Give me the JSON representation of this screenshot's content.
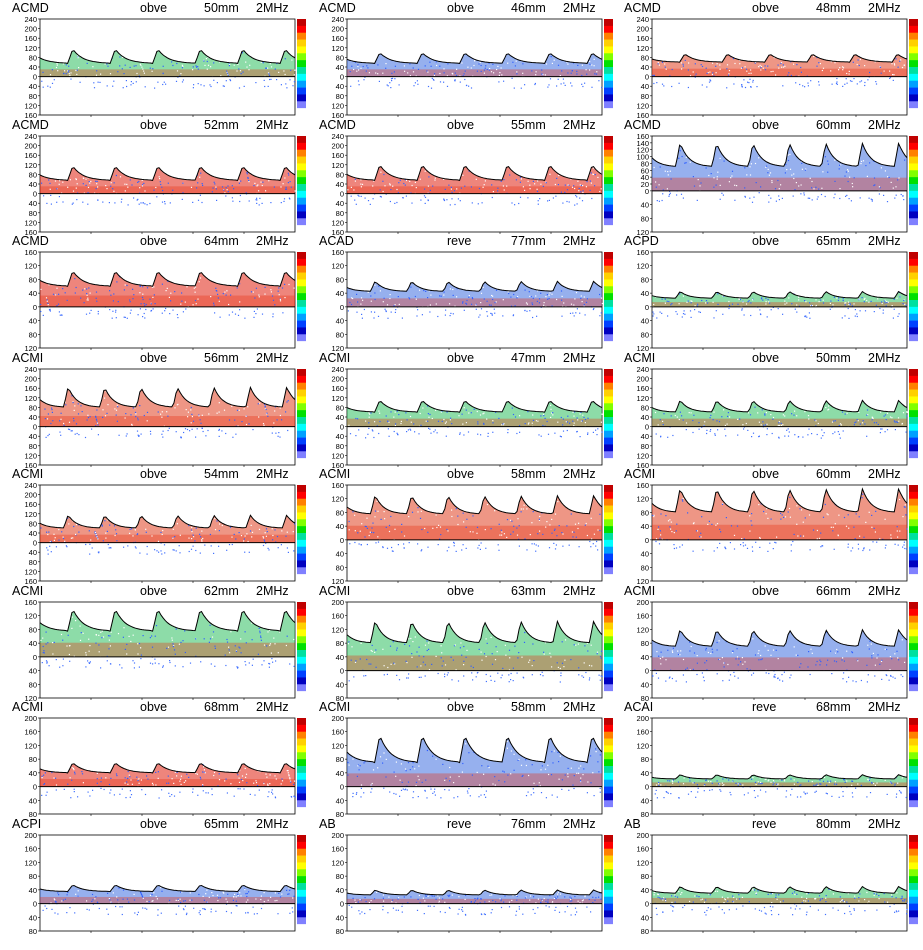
{
  "colorbar": [
    "#c00000",
    "#ff0000",
    "#ff8000",
    "#ffd000",
    "#ffff00",
    "#80ff00",
    "#00e000",
    "#00e0a0",
    "#00ffff",
    "#00a0ff",
    "#0040ff",
    "#0000c0",
    "#8080ff",
    "#ffffff"
  ],
  "chart_data": [
    {
      "type": "heatmap",
      "vessel": "ACMD",
      "direction": "obve",
      "depth": "50mm",
      "freq": "2MHz",
      "ticks_top": [
        "240",
        "200",
        "160",
        "120",
        "80",
        "40",
        "0"
      ],
      "ticks_bottom": [
        "40",
        "80",
        "120",
        "160"
      ],
      "cycles": 6,
      "peak": 115,
      "trough": 55,
      "band_color": "#30c060"
    },
    {
      "type": "heatmap",
      "vessel": "ACMD",
      "direction": "obve",
      "depth": "46mm",
      "freq": "2MHz",
      "ticks_top": [
        "240",
        "200",
        "160",
        "120",
        "80",
        "40",
        "0"
      ],
      "ticks_bottom": [
        "40",
        "80",
        "120",
        "160"
      ],
      "cycles": 6,
      "peak": 100,
      "trough": 55,
      "band_color": "#4070e0"
    },
    {
      "type": "heatmap",
      "vessel": "ACMD",
      "direction": "obve",
      "depth": "48mm",
      "freq": "2MHz",
      "ticks_top": [
        "240",
        "200",
        "160",
        "120",
        "80",
        "40",
        "0"
      ],
      "ticks_bottom": [
        "40",
        "80",
        "120",
        "160"
      ],
      "cycles": 6,
      "peak": 95,
      "trough": 60,
      "band_color": "#e04020"
    },
    {
      "type": "heatmap",
      "vessel": "ACMD",
      "direction": "obve",
      "depth": "52mm",
      "freq": "2MHz",
      "ticks_top": [
        "240",
        "200",
        "160",
        "120",
        "80",
        "40",
        "0"
      ],
      "ticks_bottom": [
        "40",
        "80",
        "120",
        "160"
      ],
      "cycles": 6,
      "peak": 115,
      "trough": 55,
      "band_color": "#e02010"
    },
    {
      "type": "heatmap",
      "vessel": "ACMD",
      "direction": "obve",
      "depth": "55mm",
      "freq": "2MHz",
      "ticks_top": [
        "240",
        "200",
        "160",
        "120",
        "80",
        "40",
        "0"
      ],
      "ticks_bottom": [
        "40",
        "80",
        "120",
        "160"
      ],
      "cycles": 6,
      "peak": 120,
      "trough": 55,
      "band_color": "#e02010"
    },
    {
      "type": "heatmap",
      "vessel": "ACMD",
      "direction": "obve",
      "depth": "60mm",
      "freq": "2MHz",
      "ticks_top": [
        "160",
        "140",
        "120",
        "100",
        "80",
        "60",
        "40",
        "20",
        "0"
      ],
      "ticks_bottom": [
        "40",
        "80",
        "120"
      ],
      "cycles": 7,
      "peak": 140,
      "trough": 70,
      "band_color": "#4070e0"
    },
    {
      "type": "heatmap",
      "vessel": "ACMD",
      "direction": "obve",
      "depth": "64mm",
      "freq": "2MHz",
      "ticks_top": [
        "160",
        "120",
        "80",
        "40",
        "0"
      ],
      "ticks_bottom": [
        "40",
        "80",
        "120"
      ],
      "cycles": 6,
      "peak": 105,
      "trough": 60,
      "band_color": "#e02010"
    },
    {
      "type": "heatmap",
      "vessel": "ACAD",
      "direction": "reve",
      "depth": "77mm",
      "freq": "2MHz",
      "ticks_top": [
        "160",
        "120",
        "80",
        "40",
        "0"
      ],
      "ticks_bottom": [
        "40",
        "80",
        "120"
      ],
      "cycles": 7,
      "peak": 75,
      "trough": 45,
      "band_color": "#4070e0"
    },
    {
      "type": "heatmap",
      "vessel": "ACPD",
      "direction": "obve",
      "depth": "65mm",
      "freq": "2MHz",
      "ticks_top": [
        "160",
        "120",
        "80",
        "40",
        "0"
      ],
      "ticks_bottom": [
        "40",
        "80",
        "120"
      ],
      "cycles": 7,
      "peak": 45,
      "trough": 25,
      "band_color": "#30c060"
    },
    {
      "type": "heatmap",
      "vessel": "ACMI",
      "direction": "obve",
      "depth": "56mm",
      "freq": "2MHz",
      "ticks_top": [
        "240",
        "200",
        "160",
        "120",
        "80",
        "40",
        "0"
      ],
      "ticks_bottom": [
        "40",
        "80",
        "120",
        "160"
      ],
      "cycles": 7,
      "peak": 165,
      "trough": 80,
      "band_color": "#e04020"
    },
    {
      "type": "heatmap",
      "vessel": "ACMI",
      "direction": "obve",
      "depth": "47mm",
      "freq": "2MHz",
      "ticks_top": [
        "240",
        "200",
        "160",
        "120",
        "80",
        "40",
        "0"
      ],
      "ticks_bottom": [
        "40",
        "80",
        "120",
        "160"
      ],
      "cycles": 6,
      "peak": 110,
      "trough": 60,
      "band_color": "#30c060"
    },
    {
      "type": "heatmap",
      "vessel": "ACMI",
      "direction": "obve",
      "depth": "50mm",
      "freq": "2MHz",
      "ticks_top": [
        "240",
        "200",
        "160",
        "120",
        "80",
        "40",
        "0"
      ],
      "ticks_bottom": [
        "40",
        "80",
        "120",
        "160"
      ],
      "cycles": 7,
      "peak": 110,
      "trough": 60,
      "band_color": "#30c060"
    },
    {
      "type": "heatmap",
      "vessel": "ACMI",
      "direction": "obve",
      "depth": "54mm",
      "freq": "2MHz",
      "ticks_top": [
        "240",
        "200",
        "160",
        "120",
        "80",
        "40",
        "0"
      ],
      "ticks_bottom": [
        "40",
        "80",
        "120",
        "160"
      ],
      "cycles": 7,
      "peak": 115,
      "trough": 60,
      "band_color": "#e04020"
    },
    {
      "type": "heatmap",
      "vessel": "ACMI",
      "direction": "obve",
      "depth": "58mm",
      "freq": "2MHz",
      "ticks_top": [
        "160",
        "120",
        "80",
        "40",
        "0"
      ],
      "ticks_bottom": [
        "40",
        "80",
        "120"
      ],
      "cycles": 7,
      "peak": 130,
      "trough": 75,
      "band_color": "#e04020"
    },
    {
      "type": "heatmap",
      "vessel": "ACMI",
      "direction": "obve",
      "depth": "60mm",
      "freq": "2MHz",
      "ticks_top": [
        "160",
        "120",
        "80",
        "40",
        "0"
      ],
      "ticks_bottom": [
        "40",
        "80",
        "120"
      ],
      "cycles": 7,
      "peak": 150,
      "trough": 80,
      "band_color": "#e04020"
    },
    {
      "type": "heatmap",
      "vessel": "ACMI",
      "direction": "obve",
      "depth": "62mm",
      "freq": "2MHz",
      "ticks_top": [
        "160",
        "120",
        "80",
        "40",
        "0"
      ],
      "ticks_bottom": [
        "40",
        "80",
        "120"
      ],
      "cycles": 6,
      "peak": 140,
      "trough": 75,
      "band_color": "#30c060"
    },
    {
      "type": "heatmap",
      "vessel": "ACMI",
      "direction": "obve",
      "depth": "63mm",
      "freq": "2MHz",
      "ticks_top": [
        "200",
        "160",
        "120",
        "80",
        "40",
        "0"
      ],
      "ticks_bottom": [
        "40",
        "80"
      ],
      "cycles": 7,
      "peak": 145,
      "trough": 80,
      "band_color": "#30c060"
    },
    {
      "type": "heatmap",
      "vessel": "ACMI",
      "direction": "obve",
      "depth": "66mm",
      "freq": "2MHz",
      "ticks_top": [
        "200",
        "160",
        "120",
        "80",
        "40",
        "0"
      ],
      "ticks_bottom": [
        "40",
        "80"
      ],
      "cycles": 7,
      "peak": 120,
      "trough": 70,
      "band_color": "#4070e0"
    },
    {
      "type": "heatmap",
      "vessel": "ACMI",
      "direction": "obve",
      "depth": "68mm",
      "freq": "2MHz",
      "ticks_top": [
        "200",
        "160",
        "120",
        "80",
        "40",
        "0"
      ],
      "ticks_bottom": [
        "40",
        "80"
      ],
      "cycles": 6,
      "peak": 70,
      "trough": 40,
      "band_color": "#e02010"
    },
    {
      "type": "heatmap",
      "vessel": "ACMI",
      "direction": "obve",
      "depth": "58mm",
      "freq": "2MHz",
      "ticks_top": [
        "200",
        "160",
        "120",
        "80",
        "40",
        "0"
      ],
      "ticks_bottom": [
        "40",
        "80"
      ],
      "cycles": 6,
      "peak": 150,
      "trough": 70,
      "band_color": "#4070e0"
    },
    {
      "type": "heatmap",
      "vessel": "ACAI",
      "direction": "reve",
      "depth": "68mm",
      "freq": "2MHz",
      "ticks_top": [
        "200",
        "160",
        "120",
        "80",
        "40",
        "0"
      ],
      "ticks_bottom": [
        "40",
        "80"
      ],
      "cycles": 7,
      "peak": 35,
      "trough": 22,
      "band_color": "#30c060"
    },
    {
      "type": "heatmap",
      "vessel": "ACPI",
      "direction": "obve",
      "depth": "65mm",
      "freq": "2MHz",
      "ticks_top": [
        "200",
        "160",
        "120",
        "80",
        "40",
        "0"
      ],
      "ticks_bottom": [
        "40",
        "80"
      ],
      "cycles": 6,
      "peak": 55,
      "trough": 35,
      "band_color": "#4070e0"
    },
    {
      "type": "heatmap",
      "vessel": "AB",
      "direction": "reve",
      "depth": "76mm",
      "freq": "2MHz",
      "ticks_top": [
        "200",
        "160",
        "120",
        "80",
        "40",
        "0"
      ],
      "ticks_bottom": [
        "40",
        "80"
      ],
      "cycles": 7,
      "peak": 40,
      "trough": 25,
      "band_color": "#4070e0"
    },
    {
      "type": "heatmap",
      "vessel": "AB",
      "direction": "reve",
      "depth": "80mm",
      "freq": "2MHz",
      "ticks_top": [
        "200",
        "160",
        "120",
        "80",
        "40",
        "0"
      ],
      "ticks_bottom": [
        "40",
        "80"
      ],
      "cycles": 7,
      "peak": 50,
      "trough": 30,
      "band_color": "#30c060"
    }
  ]
}
